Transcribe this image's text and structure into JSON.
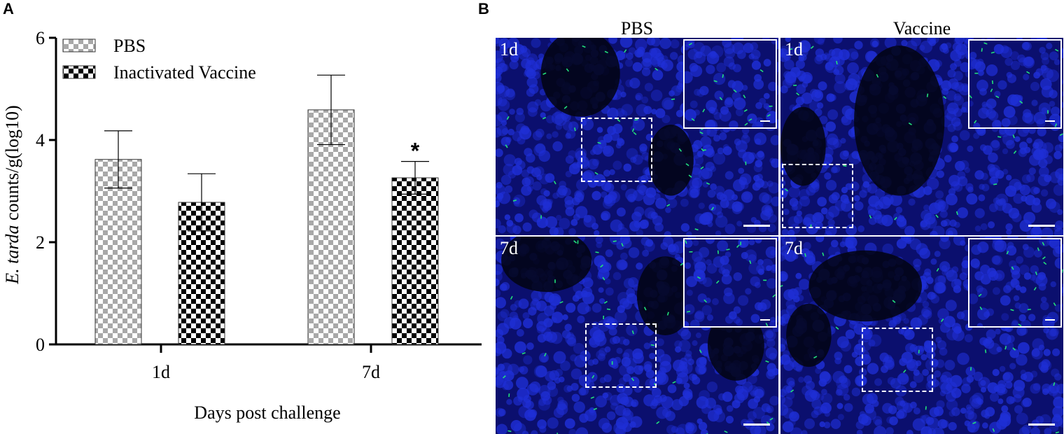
{
  "panels": {
    "a_letter": "A",
    "b_letter": "B"
  },
  "chart_data": {
    "type": "bar",
    "categories": [
      "1d",
      "7d"
    ],
    "series": [
      {
        "name": "PBS",
        "values": [
          3.62,
          4.59
        ],
        "errors": [
          0.56,
          0.68
        ],
        "pattern": "gray-checker"
      },
      {
        "name": "Inactivated Vaccine",
        "values": [
          2.78,
          3.26
        ],
        "errors": [
          0.56,
          0.32
        ],
        "pattern": "black-checker"
      }
    ],
    "significance": [
      {
        "category": "7d",
        "series": "Inactivated Vaccine",
        "mark": "*"
      }
    ],
    "ylabel_italic": "E. tarda",
    "ylabel_rest": " counts/g(log10)",
    "xlabel": "Days post challenge",
    "ylim": [
      0,
      6
    ],
    "yticks": [
      "0",
      "2",
      "4",
      "6"
    ],
    "legend_position": "top-left",
    "grid": false
  },
  "micrographs": {
    "columns": [
      "PBS",
      "Vaccine"
    ],
    "rows": [
      "1d",
      "7d"
    ],
    "background_color": "#0b0f6e",
    "nuclei_color": "#1f2fd6",
    "bacteria_color": "#22e07a",
    "frame_color": "#ffffff"
  }
}
